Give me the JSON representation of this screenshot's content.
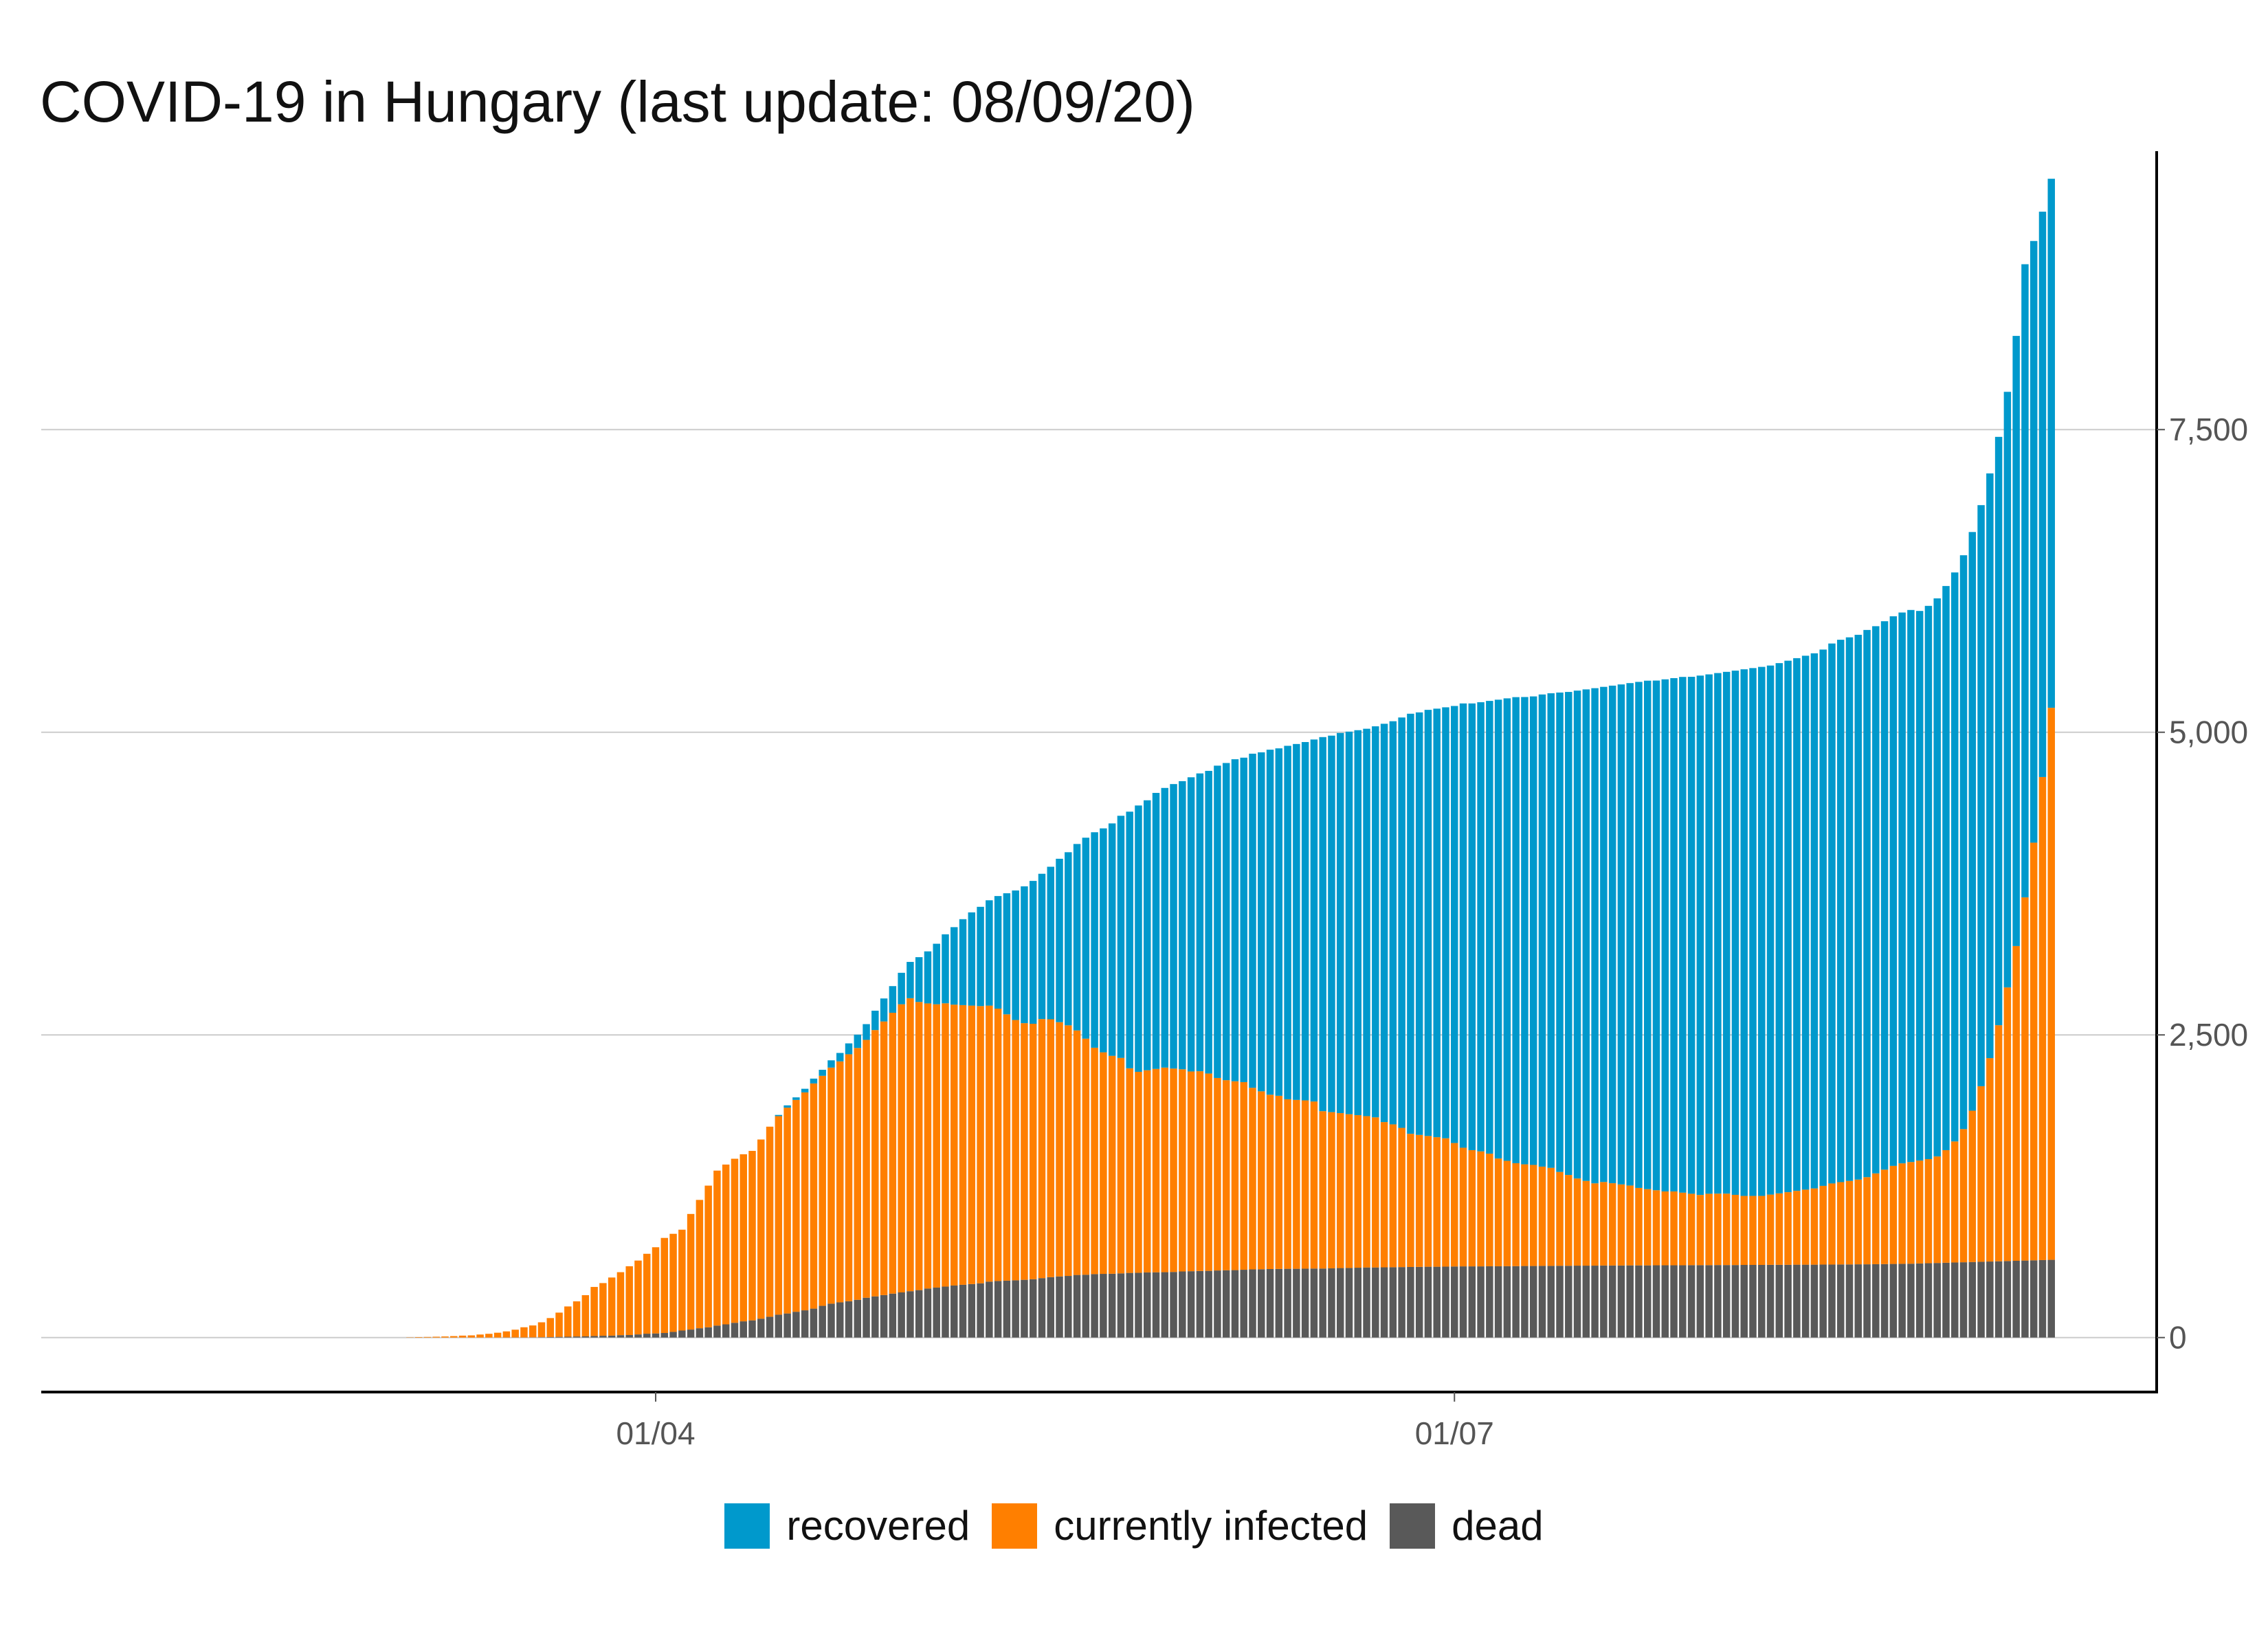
{
  "chart_data": {
    "type": "bar",
    "stacked": true,
    "title": "COVID-19 in Hungary (last update: 08/09/20)",
    "xlabel": "",
    "ylabel": "",
    "x_axis": {
      "tick_labels": [
        "01/04",
        "01/07"
      ],
      "tick_values": [
        "2020-04-01",
        "2020-07-01"
      ]
    },
    "y_axis": {
      "position": "right",
      "ticks": [
        0,
        2500,
        5000,
        7500
      ],
      "tick_labels": [
        "0",
        "2,500",
        "5,000",
        "7,500"
      ]
    },
    "xlim": [
      "2020-01-22",
      "2020-09-19"
    ],
    "ylim": [
      -450,
      9800
    ],
    "grid": {
      "horizontal": true,
      "vertical": false
    },
    "legend_position": "bottom",
    "dates": {
      "start": "2020-03-04",
      "end": "2020-09-08"
    },
    "series": [
      {
        "name": "dead",
        "color": "#595959",
        "values": [
          0,
          0,
          0,
          0,
          0,
          0,
          0,
          0,
          0,
          0,
          0,
          1,
          1,
          1,
          2,
          3,
          4,
          6,
          7,
          9,
          10,
          13,
          15,
          16,
          20,
          21,
          26,
          32,
          34,
          38,
          47,
          58,
          66,
          77,
          85,
          99,
          109,
          122,
          134,
          142,
          156,
          172,
          189,
          199,
          213,
          225,
          239,
          262,
          280,
          291,
          300,
          312,
          329,
          340,
          351,
          363,
          373,
          383,
          392,
          405,
          413,
          421,
          430,
          436,
          442,
          448,
          462,
          467,
          470,
          473,
          477,
          482,
          491,
          499,
          505,
          509,
          517,
          519,
          524,
          526,
          527,
          530,
          534,
          535,
          538,
          539,
          540,
          542,
          546,
          548,
          550,
          551,
          554,
          556,
          557,
          560,
          563,
          564,
          566,
          567,
          568,
          568,
          569,
          570,
          570,
          572,
          574,
          575,
          577,
          579,
          579,
          580,
          581,
          582,
          583,
          584,
          585,
          585,
          586,
          587,
          588,
          588,
          588,
          589,
          589,
          590,
          590,
          591,
          591,
          592,
          592,
          593,
          593,
          594,
          594,
          594,
          595,
          595,
          595,
          596,
          596,
          596,
          597,
          597,
          597,
          597,
          598,
          598,
          598,
          599,
          599,
          599,
          600,
          600,
          600,
          601,
          601,
          601,
          602,
          602,
          602,
          603,
          603,
          604,
          604,
          605,
          605,
          606,
          607,
          608,
          609,
          610,
          612,
          614,
          616,
          618,
          620,
          622,
          624,
          626,
          628,
          630,
          632,
          634,
          636,
          638,
          640,
          642
        ]
      },
      {
        "name": "currently infected",
        "color": "#FF7F00",
        "values": [
          2,
          4,
          5,
          7,
          9,
          12,
          16,
          18,
          25,
          31,
          40,
          50,
          64,
          84,
          98,
          123,
          157,
          200,
          250,
          290,
          340,
          405,
          435,
          480,
          520,
          568,
          610,
          660,
          712,
          785,
          810,
          833,
          955,
          1060,
          1170,
          1280,
          1320,
          1355,
          1380,
          1400,
          1480,
          1570,
          1640,
          1700,
          1750,
          1800,
          1860,
          1900,
          1950,
          1990,
          2040,
          2080,
          2130,
          2200,
          2260,
          2320,
          2380,
          2420,
          2380,
          2355,
          2340,
          2340,
          2320,
          2310,
          2300,
          2290,
          2280,
          2250,
          2200,
          2150,
          2120,
          2110,
          2140,
          2130,
          2100,
          2070,
          2020,
          1950,
          1870,
          1830,
          1800,
          1780,
          1690,
          1660,
          1670,
          1680,
          1690,
          1680,
          1670,
          1650,
          1650,
          1630,
          1590,
          1570,
          1560,
          1550,
          1500,
          1470,
          1440,
          1430,
          1400,
          1395,
          1390,
          1380,
          1300,
          1290,
          1280,
          1270,
          1260,
          1250,
          1240,
          1200,
          1180,
          1150,
          1100,
          1090,
          1080,
          1070,
          1060,
          1020,
          980,
          960,
          950,
          930,
          890,
          870,
          850,
          840,
          835,
          820,
          810,
          775,
          750,
          720,
          700,
          680,
          690,
          680,
          670,
          660,
          640,
          630,
          620,
          610,
          610,
          600,
          590,
          580,
          590,
          590,
          590,
          580,
          570,
          570,
          570,
          580,
          590,
          600,
          610,
          620,
          630,
          650,
          670,
          680,
          690,
          700,
          720,
          750,
          780,
          810,
          830,
          840,
          850,
          860,
          880,
          930,
          1000,
          1100,
          1250,
          1450,
          1680,
          1950,
          2260,
          2600,
          3000,
          3450,
          3990,
          4560,
          5000
        ]
      },
      {
        "name": "recovered",
        "color": "#0099CC",
        "values": [
          0,
          0,
          0,
          0,
          0,
          0,
          0,
          0,
          0,
          0,
          0,
          0,
          0,
          0,
          0,
          0,
          0,
          0,
          0,
          0,
          0,
          0,
          0,
          0,
          0,
          0,
          0,
          0,
          0,
          0,
          0,
          0,
          0,
          0,
          0,
          0,
          0,
          0,
          0,
          0,
          0,
          0,
          10,
          19,
          21,
          30,
          40,
          50,
          60,
          70,
          90,
          110,
          130,
          160,
          190,
          220,
          260,
          300,
          370,
          430,
          500,
          570,
          640,
          710,
          770,
          820,
          870,
          930,
          1000,
          1070,
          1130,
          1180,
          1200,
          1260,
          1350,
          1430,
          1540,
          1660,
          1780,
          1850,
          1920,
          2000,
          2120,
          2200,
          2230,
          2280,
          2310,
          2350,
          2380,
          2430,
          2460,
          2500,
          2580,
          2620,
          2660,
          2680,
          2760,
          2800,
          2850,
          2870,
          2920,
          2940,
          2960,
          2990,
          3090,
          3110,
          3140,
          3160,
          3180,
          3200,
          3230,
          3290,
          3330,
          3390,
          3470,
          3490,
          3520,
          3540,
          3560,
          3610,
          3670,
          3690,
          3710,
          3740,
          3790,
          3820,
          3850,
          3860,
          3870,
          3900,
          3920,
          3960,
          3990,
          4030,
          4060,
          4090,
          4090,
          4110,
          4130,
          4150,
          4180,
          4200,
          4210,
          4230,
          4240,
          4260,
          4270,
          4290,
          4290,
          4300,
          4310,
          4330,
          4350,
          4360,
          4370,
          4370,
          4380,
          4390,
          4400,
          4410,
          4420,
          4430,
          4460,
          4480,
          4490,
          4500,
          4520,
          4520,
          4530,
          4540,
          4550,
          4560,
          4540,
          4570,
          4610,
          4660,
          4700,
          4740,
          4780,
          4800,
          4830,
          4860,
          4920,
          5040,
          5230,
          4970,
          4670,
          4370,
          4110,
          4020,
          4000
        ]
      }
    ]
  }
}
